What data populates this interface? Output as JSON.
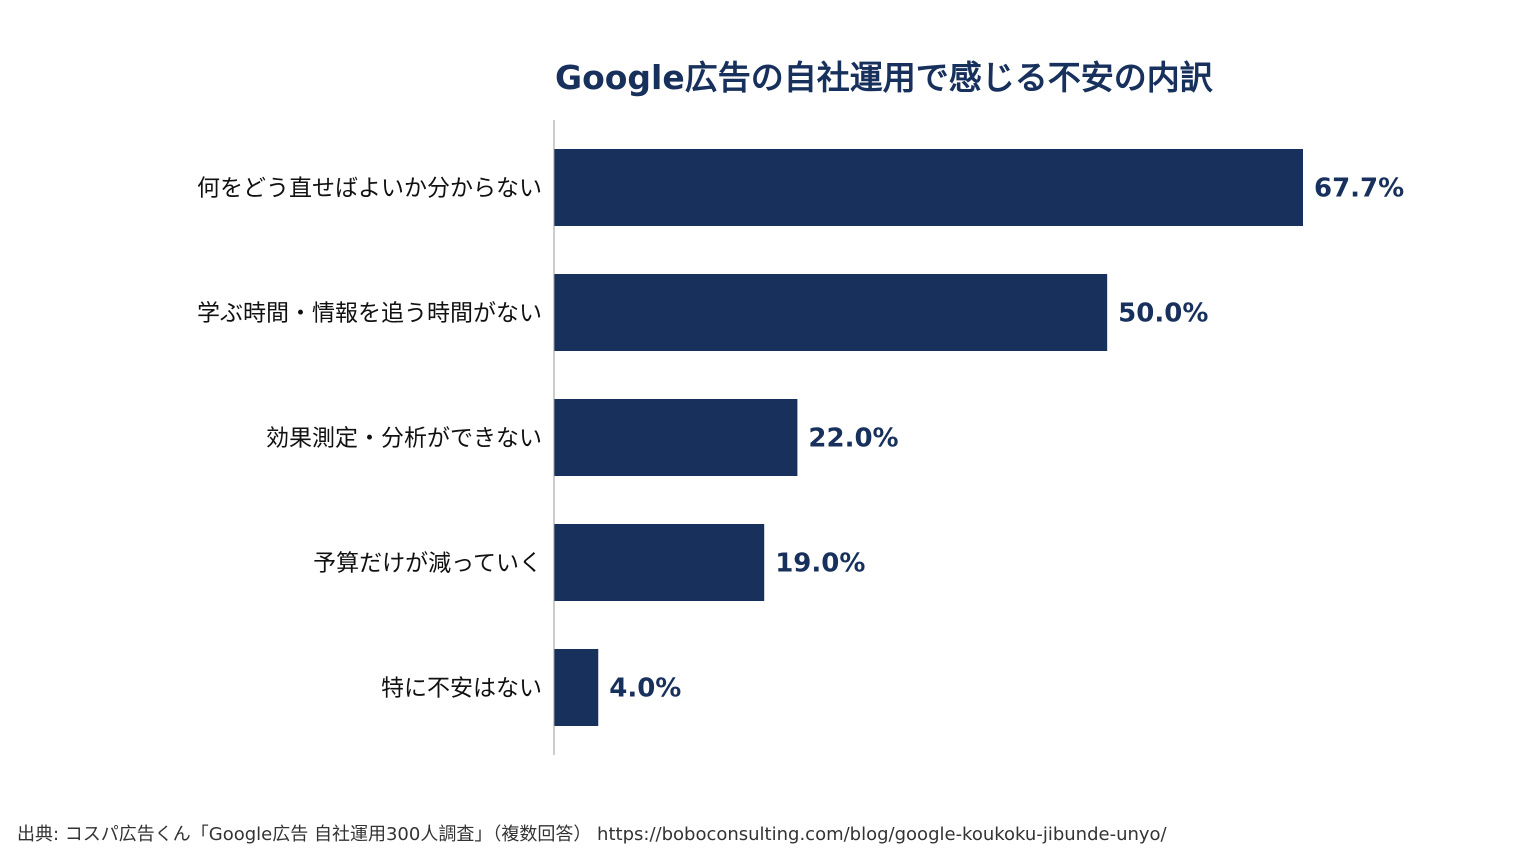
{
  "chart_data": {
    "type": "bar",
    "orientation": "horizontal",
    "title": "Google広告の自社運用で感じる不安の内訳",
    "categories": [
      "何をどう直せばよいか分からない",
      "学ぶ時間・情報を追う時間がない",
      "効果測定・分析ができない",
      "予算だけが減っていく",
      "特に不安はない"
    ],
    "values": [
      67.7,
      50.0,
      22.0,
      19.0,
      4.0
    ],
    "value_labels": [
      "67.7%",
      "50.0%",
      "22.0%",
      "19.0%",
      "4.0%"
    ],
    "unit": "%",
    "xlim": [
      0,
      100
    ],
    "grid": false,
    "legend": "none",
    "bar_color": "#17305c",
    "title_color": "#17305c",
    "label_color": "#17305c",
    "axis_color": "#999999"
  },
  "source_note": "出典: コスパ広告くん「Google広告 自社運用300人調査」（複数回答） https://boboconsulting.com/blog/google-koukoku-jibunde-unyo/"
}
